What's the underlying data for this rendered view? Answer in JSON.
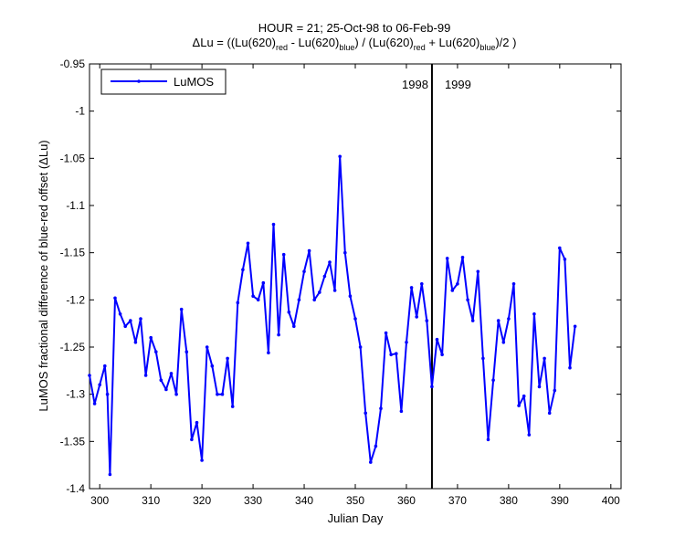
{
  "chart_data": {
    "type": "line",
    "title": "HOUR = 21; 25-Oct-98 to 06-Feb-99",
    "subtitle": {
      "prefix": "ΔLu = ((Lu(620)",
      "sub1": "red",
      "mid1": " - Lu(620)",
      "sub2": "blue",
      "mid2": ") / (Lu(620)",
      "sub3": "red",
      "mid3": " + Lu(620)",
      "sub4": "blue",
      "suffix": ")/2  )"
    },
    "xlabel": "Julian Day",
    "ylabel": "LuMOS fractional difference of blue-red offset (ΔLu)",
    "xlim": [
      298,
      402
    ],
    "ylim": [
      -1.4,
      -0.95
    ],
    "y_reversed": true,
    "grid": false,
    "xticks": [
      300,
      310,
      320,
      330,
      340,
      350,
      360,
      370,
      380,
      390,
      400
    ],
    "yticks": [
      -0.95,
      -1,
      -1.05,
      -1.1,
      -1.15,
      -1.2,
      -1.25,
      -1.3,
      -1.35,
      -1.4
    ],
    "ytick_labels": [
      "-0.95",
      "-1",
      "-1.05",
      "-1.1",
      "-1.15",
      "-1.2",
      "-1.25",
      "-1.3",
      "-1.35",
      "-1.4"
    ],
    "legend": {
      "position": "top-left",
      "entries": [
        "LuMOS"
      ]
    },
    "vline": {
      "x": 365,
      "left_label": "1998",
      "right_label": "1999"
    },
    "series": [
      {
        "name": "LuMOS",
        "color": "#0000ff",
        "marker": "dot",
        "x": [
          298,
          299,
          300,
          301,
          301.5,
          302,
          303,
          304,
          305,
          306,
          307,
          308,
          309,
          310,
          311,
          312,
          313,
          314,
          315,
          316,
          317,
          318,
          319,
          320,
          321,
          322,
          323,
          324,
          325,
          326,
          327,
          328,
          329,
          330,
          331,
          332,
          333,
          334,
          335,
          336,
          337,
          338,
          339,
          340,
          341,
          342,
          343,
          344,
          345,
          346,
          347,
          348,
          349,
          350,
          351,
          352,
          353,
          354,
          355,
          356,
          357,
          358,
          359,
          360,
          361,
          362,
          363,
          364,
          365,
          366,
          367,
          368,
          369,
          370,
          371,
          372,
          373,
          374,
          375,
          376,
          377,
          378,
          379,
          380,
          381,
          382,
          383,
          384,
          385,
          386,
          387,
          388,
          389,
          390,
          391,
          392,
          393
        ],
        "y": [
          -1.28,
          -1.31,
          -1.29,
          -1.27,
          -1.3,
          -1.385,
          -1.198,
          -1.215,
          -1.228,
          -1.222,
          -1.245,
          -1.22,
          -1.28,
          -1.24,
          -1.255,
          -1.285,
          -1.295,
          -1.278,
          -1.3,
          -1.21,
          -1.255,
          -1.348,
          -1.33,
          -1.37,
          -1.25,
          -1.27,
          -1.3,
          -1.3,
          -1.262,
          -1.313,
          -1.203,
          -1.168,
          -1.14,
          -1.196,
          -1.2,
          -1.182,
          -1.256,
          -1.12,
          -1.237,
          -1.152,
          -1.213,
          -1.228,
          -1.2,
          -1.17,
          -1.148,
          -1.2,
          -1.192,
          -1.175,
          -1.16,
          -1.19,
          -1.048,
          -1.15,
          -1.196,
          -1.22,
          -1.25,
          -1.32,
          -1.372,
          -1.355,
          -1.315,
          -1.235,
          -1.258,
          -1.257,
          -1.318,
          -1.245,
          -1.187,
          -1.218,
          -1.183,
          -1.222,
          -1.292,
          -1.242,
          -1.258,
          -1.156,
          -1.19,
          -1.183,
          -1.155,
          -1.2,
          -1.222,
          -1.17,
          -1.262,
          -1.348,
          -1.285,
          -1.222,
          -1.245,
          -1.22,
          -1.183,
          -1.312,
          -1.302,
          -1.343,
          -1.215,
          -1.292,
          -1.262,
          -1.32,
          -1.296,
          -1.145,
          -1.157,
          -1.272,
          -1.228
        ]
      }
    ]
  }
}
